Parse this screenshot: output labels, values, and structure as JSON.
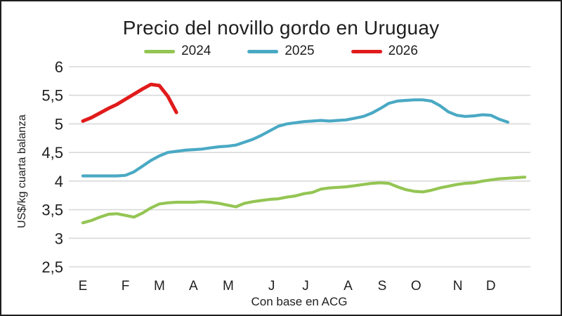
{
  "title": "Precio del novillo gordo en Uruguay",
  "x_axis_title": "Con base en ACG",
  "y_axis_title": "US$/kg cuarta balanza",
  "colors": {
    "grid": "#d9d9d9",
    "text": "#1f1f1f",
    "series_2024": "#94c553",
    "series_2025": "#4aa9c4",
    "series_2026": "#e11b1b"
  },
  "chart_data": {
    "type": "line",
    "title": "Precio del novillo gordo en Uruguay",
    "xlabel": "Con base en ACG",
    "ylabel": "US$/kg cuarta balanza",
    "ylim": [
      2.5,
      6
    ],
    "grid": "horizontal only",
    "legend_position": "top",
    "x_structure": "weekly data points; month initials (Spanish, Enero-Diciembre) mark month starts",
    "yticks": [
      {
        "v": 6,
        "label": "6"
      },
      {
        "v": 5.5,
        "label": "5,5"
      },
      {
        "v": 5,
        "label": "5"
      },
      {
        "v": 4.5,
        "label": "4,5"
      },
      {
        "v": 4,
        "label": "4"
      },
      {
        "v": 3.5,
        "label": "3,5"
      },
      {
        "v": 3,
        "label": "3"
      },
      {
        "v": 2.5,
        "label": "2,5"
      }
    ],
    "months": [
      {
        "label": "E",
        "week": 0
      },
      {
        "label": "F",
        "week": 5
      },
      {
        "label": "M",
        "week": 9
      },
      {
        "label": "A",
        "week": 13
      },
      {
        "label": "M",
        "week": 17.1
      },
      {
        "label": "J",
        "week": 22.2
      },
      {
        "label": "J",
        "week": 26.2
      },
      {
        "label": "A",
        "week": 31.2
      },
      {
        "label": "S",
        "week": 35.2
      },
      {
        "label": "O",
        "week": 39.2
      },
      {
        "label": "N",
        "week": 44.1
      },
      {
        "label": "D",
        "week": 48
      }
    ],
    "series": [
      {
        "name": "2024",
        "color": "#94c553",
        "start_week": 0,
        "values": [
          3.27,
          3.31,
          3.37,
          3.42,
          3.43,
          3.4,
          3.37,
          3.44,
          3.53,
          3.6,
          3.62,
          3.63,
          3.63,
          3.63,
          3.64,
          3.63,
          3.61,
          3.58,
          3.55,
          3.61,
          3.64,
          3.66,
          3.68,
          3.69,
          3.72,
          3.74,
          3.78,
          3.8,
          3.86,
          3.88,
          3.89,
          3.9,
          3.92,
          3.94,
          3.96,
          3.97,
          3.96,
          3.9,
          3.85,
          3.82,
          3.81,
          3.84,
          3.88,
          3.91,
          3.94,
          3.96,
          3.97,
          4.0,
          4.02,
          4.04,
          4.05,
          4.06,
          4.07
        ]
      },
      {
        "name": "2025",
        "color": "#4aa9c4",
        "start_week": 0,
        "values": [
          4.09,
          4.09,
          4.09,
          4.09,
          4.09,
          4.1,
          4.16,
          4.26,
          4.36,
          4.44,
          4.5,
          4.52,
          4.54,
          4.55,
          4.56,
          4.58,
          4.6,
          4.61,
          4.63,
          4.68,
          4.73,
          4.8,
          4.88,
          4.96,
          5.0,
          5.02,
          5.04,
          5.05,
          5.06,
          5.05,
          5.06,
          5.07,
          5.1,
          5.13,
          5.19,
          5.27,
          5.36,
          5.4,
          5.41,
          5.42,
          5.42,
          5.4,
          5.32,
          5.21,
          5.15,
          5.13,
          5.14,
          5.16,
          5.15,
          5.08,
          5.03
        ]
      },
      {
        "name": "2026",
        "color": "#e11b1b",
        "start_week": 0,
        "values": [
          5.05,
          5.11,
          5.19,
          5.27,
          5.34,
          5.43,
          5.52,
          5.61,
          5.69,
          5.67,
          5.48,
          5.2
        ]
      }
    ]
  }
}
